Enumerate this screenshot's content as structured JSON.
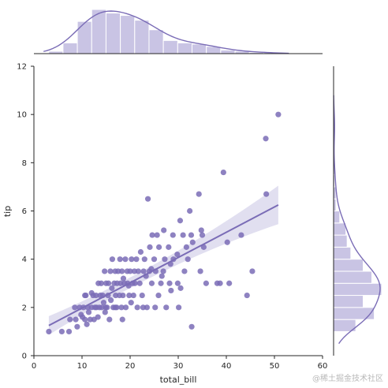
{
  "chart_data": {
    "type": "scatter",
    "joint": {
      "xlabel": "total_bill",
      "ylabel": "tip",
      "xlim": [
        0,
        60
      ],
      "ylim": [
        0,
        12
      ],
      "xticks": [
        0,
        10,
        20,
        30,
        40,
        50,
        60
      ],
      "yticks": [
        0,
        2,
        4,
        6,
        8,
        10,
        12
      ],
      "grid": false,
      "points": [
        [
          3.1,
          1.0
        ],
        [
          5.8,
          1.0
        ],
        [
          7.3,
          1.0
        ],
        [
          7.5,
          1.5
        ],
        [
          8.5,
          2.0
        ],
        [
          8.7,
          1.5
        ],
        [
          9.0,
          1.2
        ],
        [
          9.5,
          2.0
        ],
        [
          9.8,
          1.7
        ],
        [
          10.1,
          1.6
        ],
        [
          10.3,
          2.0
        ],
        [
          10.6,
          1.5
        ],
        [
          10.8,
          2.5
        ],
        [
          11.0,
          1.3
        ],
        [
          11.2,
          2.0
        ],
        [
          11.4,
          1.8
        ],
        [
          11.7,
          1.5
        ],
        [
          12.0,
          2.0
        ],
        [
          12.3,
          2.5
        ],
        [
          12.5,
          1.5
        ],
        [
          12.7,
          2.0
        ],
        [
          12.9,
          2.5
        ],
        [
          13.0,
          2.0
        ],
        [
          13.3,
          1.6
        ],
        [
          13.4,
          3.0
        ],
        [
          13.6,
          2.0
        ],
        [
          13.8,
          2.5
        ],
        [
          14.0,
          3.0
        ],
        [
          14.1,
          2.0
        ],
        [
          14.3,
          2.5
        ],
        [
          14.5,
          2.2
        ],
        [
          14.7,
          3.5
        ],
        [
          14.9,
          2.0
        ],
        [
          15.0,
          3.0
        ],
        [
          15.2,
          2.0
        ],
        [
          15.4,
          2.5
        ],
        [
          15.5,
          3.0
        ],
        [
          15.7,
          1.5
        ],
        [
          15.9,
          3.5
        ],
        [
          16.0,
          2.3
        ],
        [
          16.2,
          2.8
        ],
        [
          16.3,
          4.0
        ],
        [
          16.5,
          2.0
        ],
        [
          16.7,
          3.0
        ],
        [
          16.9,
          3.5
        ],
        [
          17.0,
          2.5
        ],
        [
          17.2,
          2.0
        ],
        [
          17.3,
          3.0
        ],
        [
          17.5,
          3.5
        ],
        [
          17.8,
          2.5
        ],
        [
          17.9,
          4.0
        ],
        [
          18.0,
          3.0
        ],
        [
          18.2,
          2.0
        ],
        [
          18.3,
          3.5
        ],
        [
          18.5,
          2.5
        ],
        [
          18.6,
          3.2
        ],
        [
          18.8,
          3.0
        ],
        [
          19.0,
          4.0
        ],
        [
          19.1,
          2.0
        ],
        [
          19.4,
          3.5
        ],
        [
          19.5,
          3.0
        ],
        [
          19.8,
          2.5
        ],
        [
          20.0,
          3.5
        ],
        [
          20.3,
          4.0
        ],
        [
          20.5,
          3.0
        ],
        [
          20.7,
          2.5
        ],
        [
          20.9,
          3.5
        ],
        [
          21.0,
          3.0
        ],
        [
          21.3,
          4.0
        ],
        [
          21.5,
          2.0
        ],
        [
          21.7,
          3.5
        ],
        [
          22.0,
          3.0
        ],
        [
          22.2,
          4.3
        ],
        [
          22.5,
          2.5
        ],
        [
          22.8,
          3.5
        ],
        [
          23.0,
          4.0
        ],
        [
          23.3,
          3.3
        ],
        [
          23.5,
          2.0
        ],
        [
          23.7,
          6.5
        ],
        [
          24.0,
          3.5
        ],
        [
          24.1,
          4.5
        ],
        [
          24.5,
          3.0
        ],
        [
          24.6,
          5.0
        ],
        [
          25.0,
          4.0
        ],
        [
          25.3,
          3.5
        ],
        [
          25.6,
          5.0
        ],
        [
          25.9,
          2.5
        ],
        [
          26.0,
          4.5
        ],
        [
          26.4,
          3.0
        ],
        [
          26.9,
          3.5
        ],
        [
          27.0,
          5.2
        ],
        [
          27.2,
          4.0
        ],
        [
          27.5,
          2.0
        ],
        [
          28.0,
          4.5
        ],
        [
          28.2,
          3.0
        ],
        [
          28.5,
          2.7
        ],
        [
          28.9,
          5.0
        ],
        [
          29.0,
          4.0
        ],
        [
          29.8,
          4.2
        ],
        [
          30.1,
          2.0
        ],
        [
          30.4,
          5.6
        ],
        [
          31.0,
          5.0
        ],
        [
          31.3,
          3.5
        ],
        [
          31.7,
          4.5
        ],
        [
          32.4,
          6.0
        ],
        [
          32.7,
          5.0
        ],
        [
          32.8,
          1.2
        ],
        [
          33.0,
          4.7
        ],
        [
          34.3,
          6.7
        ],
        [
          34.6,
          3.5
        ],
        [
          35.0,
          5.0
        ],
        [
          35.3,
          4.5
        ],
        [
          35.8,
          3.0
        ],
        [
          38.1,
          3.0
        ],
        [
          38.7,
          3.0
        ],
        [
          39.4,
          7.6
        ],
        [
          40.2,
          4.7
        ],
        [
          40.6,
          3.0
        ],
        [
          43.1,
          5.0
        ],
        [
          44.3,
          2.5
        ],
        [
          45.4,
          3.5
        ],
        [
          48.2,
          9.0
        ],
        [
          48.3,
          6.7
        ],
        [
          50.8,
          10.0
        ],
        [
          34.8,
          5.2
        ],
        [
          29.9,
          3.0
        ],
        [
          25.2,
          2.0
        ],
        [
          22.7,
          2.0
        ],
        [
          16.9,
          2.0
        ],
        [
          14.8,
          1.8
        ],
        [
          12.0,
          2.6
        ],
        [
          10.6,
          2.5
        ],
        [
          18.4,
          1.5
        ],
        [
          20.2,
          2.2
        ],
        [
          24.4,
          3.6
        ],
        [
          26.6,
          3.3
        ],
        [
          28.4,
          3.8
        ],
        [
          30.5,
          2.8
        ],
        [
          32.0,
          4.0
        ],
        [
          19.7,
          2.9
        ]
      ],
      "regression": {
        "x": [
          3.1,
          50.8
        ],
        "y": [
          1.25,
          6.25
        ]
      },
      "point_color": "#7a6cb6",
      "line_color": "#7a6cb6",
      "ci_color": "#c9c4e4"
    },
    "marginal_x": {
      "bin_edges": [
        3.07,
        6.05,
        9.03,
        12.01,
        14.99,
        17.97,
        20.95,
        23.93,
        26.91,
        29.89,
        32.87,
        35.85,
        38.83,
        41.81,
        44.79,
        47.77,
        50.81
      ],
      "counts": [
        2,
        9,
        27,
        37,
        34,
        32,
        28,
        20,
        11,
        9,
        8,
        6,
        3,
        2,
        1,
        1
      ]
    },
    "marginal_y": {
      "bin_edges": [
        1.0,
        1.5,
        2.0,
        2.5,
        3.0,
        3.5,
        4.0,
        4.5,
        5.0,
        5.5,
        6.0,
        6.5,
        7.0,
        7.5,
        8.0,
        8.5,
        9.0,
        9.5,
        10.0
      ],
      "counts": [
        18,
        33,
        24,
        39,
        31,
        24,
        14,
        11,
        10,
        5,
        2,
        2,
        1,
        1,
        0,
        0,
        1,
        1
      ]
    },
    "hist_color": "#c9c4e4",
    "kde_color": "#7a6cb6"
  },
  "watermark": "@稀土掘金技术社区"
}
